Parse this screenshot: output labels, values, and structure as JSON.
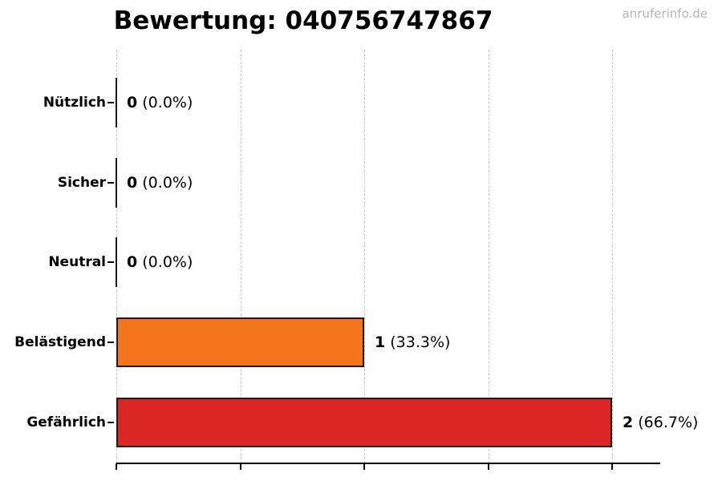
{
  "title": "Bewertung: 040756747867",
  "watermark": "anruferinfo.de",
  "colors": {
    "background": "#ffffff",
    "grid": "#c9c9c9",
    "axis": "#000000",
    "bar_border": "#1a1a1a",
    "text": "#000000",
    "watermark": "#b5b5b5",
    "bar_orange": "#f5761a",
    "bar_red": "#dc2727"
  },
  "chart_data": {
    "type": "bar",
    "orientation": "horizontal",
    "title": "Bewertung: 040756747867",
    "categories": [
      "Nützlich",
      "Sicher",
      "Neutral",
      "Belästigend",
      "Gefährlich"
    ],
    "values": [
      0,
      0,
      0,
      1,
      2
    ],
    "percentages": [
      "0.0%",
      "0.0%",
      "0.0%",
      "33.3%",
      "66.7%"
    ],
    "value_labels": [
      {
        "num": "0",
        "pct": "(0.0%)"
      },
      {
        "num": "0",
        "pct": "(0.0%)"
      },
      {
        "num": "0",
        "pct": "(0.0%)"
      },
      {
        "num": "1",
        "pct": "(33.3%)"
      },
      {
        "num": "2",
        "pct": "(66.7%)"
      }
    ],
    "bar_colors": [
      null,
      null,
      null,
      "#f5761a",
      "#dc2727"
    ],
    "xlim": [
      0,
      2
    ],
    "gridline_values": [
      0,
      0.5,
      1,
      1.5,
      2
    ],
    "grid_style": "dashed",
    "x_tick_labels_visible": false,
    "legend": "none"
  }
}
